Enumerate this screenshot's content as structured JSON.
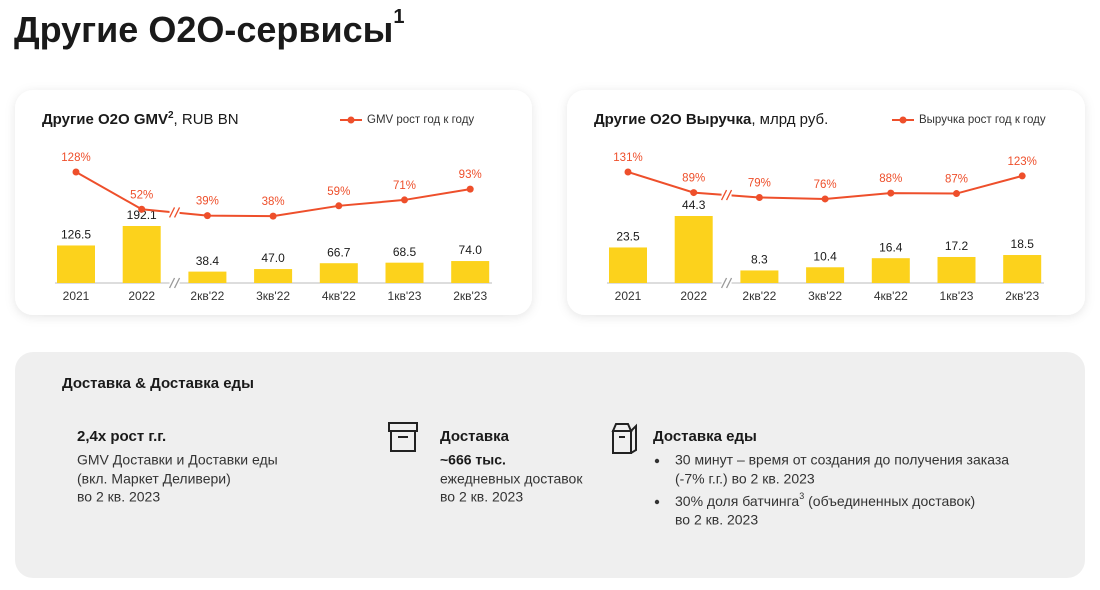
{
  "title": "Другие O2O-сервисы",
  "title_sup": "1",
  "chart_data": [
    {
      "type": "bar",
      "title": "Другие O2O GMV",
      "title_sup": "2",
      "title_suffix": ", RUB BN",
      "categories": [
        "2021",
        "2022",
        "2кв'22",
        "3кв'22",
        "4кв'22",
        "1кв'23",
        "2кв'23"
      ],
      "series": [
        {
          "type": "bar",
          "color": "#fcd21c",
          "values": [
            126.5,
            192.1,
            38.4,
            47.0,
            66.7,
            68.5,
            74.0
          ],
          "value_labels": [
            "126.5",
            "192.1",
            "38.4",
            "47.0",
            "66.7",
            "68.5",
            "74.0"
          ]
        },
        {
          "type": "line",
          "name": "GMV рост год к году",
          "color": "#ee4f2b",
          "values": [
            128,
            52,
            39,
            38,
            59,
            71,
            93
          ],
          "value_labels": [
            "128%",
            "52%",
            "39%",
            "38%",
            "59%",
            "71%",
            "93%"
          ]
        }
      ]
    },
    {
      "type": "bar",
      "title": "Другие O2O Выручка",
      "title_sup": "",
      "title_suffix": ", млрд руб.",
      "categories": [
        "2021",
        "2022",
        "2кв'22",
        "3кв'22",
        "4кв'22",
        "1кв'23",
        "2кв'23"
      ],
      "series": [
        {
          "type": "bar",
          "color": "#fcd21c",
          "values": [
            23.5,
            44.3,
            8.3,
            10.4,
            16.4,
            17.2,
            18.5
          ],
          "value_labels": [
            "23.5",
            "44.3",
            "8.3",
            "10.4",
            "16.4",
            "17.2",
            "18.5"
          ]
        },
        {
          "type": "line",
          "name": "Выручка рост год к году",
          "color": "#ee4f2b",
          "values": [
            131,
            89,
            79,
            76,
            88,
            87,
            123
          ],
          "value_labels": [
            "131%",
            "89%",
            "79%",
            "76%",
            "88%",
            "87%",
            "123%"
          ]
        }
      ]
    }
  ],
  "panel": {
    "title": "Доставка & Доставка еды",
    "columns": [
      {
        "heading": "2,4x рост г.г.",
        "lines": [
          "GMV Доставки и Доставки еды",
          "(вкл. Маркет Деливери)",
          "во 2 кв. 2023"
        ]
      },
      {
        "heading": "Доставка",
        "highlight": "~666 тыс.",
        "lines": [
          "ежедневных доставок",
          "во 2 кв. 2023"
        ]
      },
      {
        "heading": "Доставка еды",
        "bullets": [
          {
            "text": "30 минут – время от создания до получения заказа",
            "lines": [
              "(-7% г.г.) во 2 кв. 2023"
            ]
          },
          {
            "text": "30% доля батчинга",
            "sup": "3",
            "text_after": " (объединенных доставок)",
            "lines": [
              "во 2 кв. 2023"
            ]
          }
        ]
      }
    ]
  }
}
